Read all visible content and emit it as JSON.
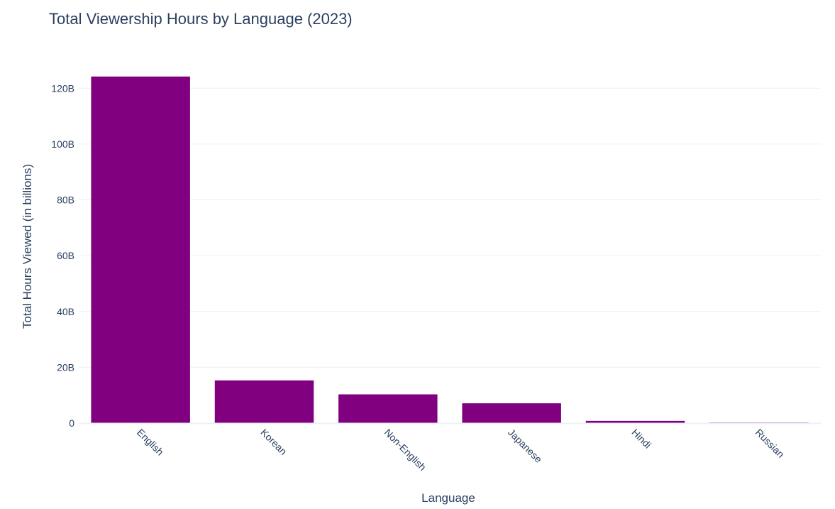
{
  "chart_data": {
    "type": "bar",
    "title": "Total Viewership Hours by Language (2023)",
    "xlabel": "Language",
    "ylabel": "Total Hours Viewed (in billions)",
    "categories": [
      "English",
      "Korean",
      "Non-English",
      "Japanese",
      "Hindi",
      "Russian"
    ],
    "values": [
      124.2,
      15.3,
      10.3,
      7.1,
      0.8,
      0.2
    ],
    "ylim": [
      0,
      130
    ],
    "yticks": [
      0,
      20,
      40,
      60,
      80,
      100,
      120
    ],
    "ytick_labels": [
      "0",
      "20B",
      "40B",
      "60B",
      "80B",
      "100B",
      "120B"
    ],
    "bar_color": "#800080",
    "grid": true,
    "legend": "none"
  }
}
